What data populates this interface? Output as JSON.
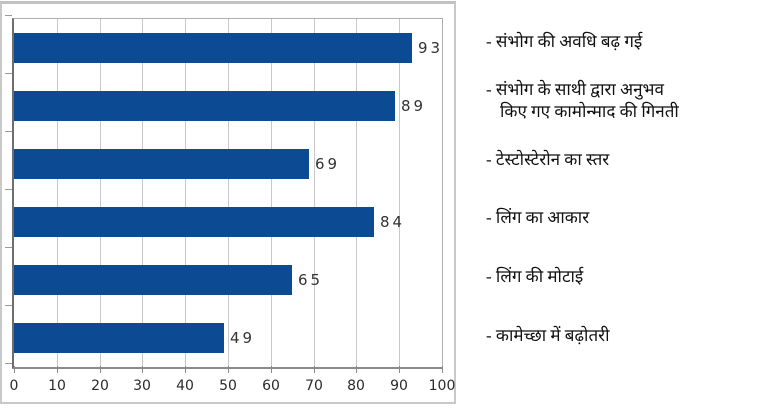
{
  "chart_data": {
    "type": "bar",
    "orientation": "horizontal",
    "title": "",
    "categories": [
      "संभोग की अवधि बढ़ गई",
      "संभोग के साथी द्वारा अनुभव किए गए कामोन्माद की गिनती",
      "टेस्टोस्टेरोन का स्तर",
      "लिंग का आकार",
      "लिंग की मोटाई",
      "कामेच्छा में बढ़ोतरी"
    ],
    "values": [
      93,
      89,
      69,
      84,
      65,
      49
    ],
    "value_labels": [
      "93",
      "89",
      "69",
      "84",
      "65",
      "49"
    ],
    "xlim": [
      0,
      100
    ],
    "x_ticks": [
      0,
      10,
      20,
      30,
      40,
      50,
      60,
      70,
      80,
      90,
      100
    ],
    "x_tick_labels": [
      "0",
      "10",
      "20",
      "30",
      "40",
      "50",
      "60",
      "70",
      "80",
      "90",
      "100"
    ],
    "grid": "vertical-on",
    "legend_position": "right",
    "bar_color": "#0d4a94"
  },
  "legend": {
    "items": [
      {
        "text": "- संभोग की अवधि बढ़ गई"
      },
      {
        "text": "- संभोग के साथी द्वारा अनुभव\nकिए गए कामोन्माद की गिनती"
      },
      {
        "text": "- टेस्टोस्टेरोन का स्तर"
      },
      {
        "text": "- लिंग का आकार"
      },
      {
        "text": "- लिंग की मोटाई"
      },
      {
        "text": "- कामेच्छा में बढ़ोतरी"
      }
    ]
  },
  "colors": {
    "bar": "#0d4a94",
    "gridline": "#c8c8c8",
    "frame_border": "#c9c9c9",
    "axis": "#6e6e6e",
    "value_text": "#333333",
    "tick_text": "#2b2b2b",
    "legend_text": "#101010"
  }
}
